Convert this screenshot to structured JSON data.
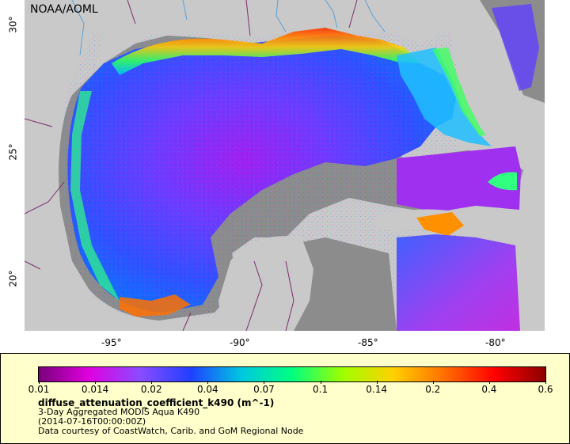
{
  "map": {
    "credit": "NOAA/AOML",
    "lat_ticks": [
      {
        "label": "30°",
        "value": 30
      },
      {
        "label": "25°",
        "value": 25
      },
      {
        "label": "20°",
        "value": 20
      }
    ],
    "lon_ticks": [
      {
        "label": "-95°",
        "value": -95
      },
      {
        "label": "-90°",
        "value": -90
      },
      {
        "label": "-85°",
        "value": -85
      },
      {
        "label": "-80°",
        "value": -80
      }
    ],
    "colors": {
      "land": "#c9c9c9",
      "nodata": "#8c8c8c",
      "border": "#7a2c6e",
      "river": "#5aa0d8"
    }
  },
  "legend": {
    "tick_labels": [
      "0.01",
      "0.014",
      "0.02",
      "0.04",
      "0.07",
      "0.1",
      "0.14",
      "0.2",
      "0.4",
      "0.6"
    ],
    "colorbar_stops": [
      "#7a007a",
      "#e000e0",
      "#8a4cff",
      "#2040ff",
      "#00c8e0",
      "#00ff80",
      "#a0ff00",
      "#ffd000",
      "#ff7000",
      "#ff0000",
      "#8c0000"
    ],
    "variable": "diffuse_attenuation_coefficient_k490 (m^-1)",
    "line1": "3-Day Aggregated MODIS Aqua K490",
    "line2": "(2014-07-16T00:00:00Z)",
    "line3": "Data courtesy of CoastWatch, Carib. and GoM Regional Node"
  }
}
